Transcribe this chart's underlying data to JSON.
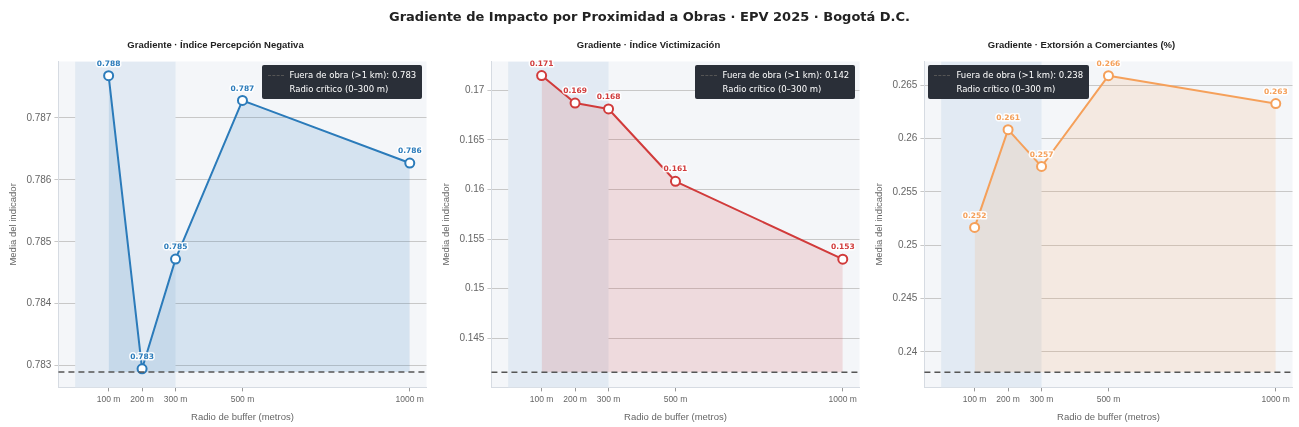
{
  "chart_data": [
    {
      "type": "other",
      "title": "Gradiente de Impacto por Proximidad a Obras · EPV 2025 · Bogotá D.C."
    },
    {
      "type": "area",
      "title": "Gradiente · Índice Percepción Negativa",
      "xlabel": "Radio de buffer (metros)",
      "ylabel": "Media del indicador",
      "x": [
        100,
        200,
        300,
        500,
        1000
      ],
      "series": [
        {
          "color": "#2b7bba",
          "values": [
            0.78768,
            0.78295,
            0.78472,
            0.78728,
            0.78627
          ],
          "value_labels": [
            "0.788",
            "0.783",
            "0.785",
            "0.787",
            "0.786"
          ]
        }
      ],
      "xlim": [
        -50,
        1050
      ],
      "xticks": [
        {
          "value": 100,
          "label": "100 m"
        },
        {
          "value": 200,
          "label": "200 m"
        },
        {
          "value": 300,
          "label": "300 m"
        },
        {
          "value": 500,
          "label": "500 m"
        },
        {
          "value": 1000,
          "label": "1000 m"
        }
      ],
      "ylim": [
        0.78265,
        0.78791
      ],
      "yticks": [
        0.783,
        0.784,
        0.785,
        0.786,
        0.787
      ],
      "ref_lines": [
        {
          "axis": "y",
          "value": 0.7829,
          "label": "Fuera de obra (>1 km): 0.783",
          "color": "#555555",
          "line_style": "dashed"
        }
      ],
      "bands": [
        {
          "axis": "x",
          "from": 0,
          "to": 300,
          "label": "Radio crítico (0–300 m)",
          "color": "#e2eaf3"
        }
      ],
      "grid": "y",
      "legend": "top right",
      "marker": "circle",
      "line_style": "solid"
    },
    {
      "type": "area",
      "title": "Gradiente · Índice Victimización",
      "xlabel": "Radio de buffer (metros)",
      "ylabel": "Media del indicador",
      "x": [
        100,
        200,
        300,
        500,
        1000
      ],
      "series": [
        {
          "color": "#d13b3b",
          "values": [
            0.1715,
            0.16873,
            0.16813,
            0.16083,
            0.15297
          ],
          "value_labels": [
            "0.171",
            "0.169",
            "0.168",
            "0.161",
            "0.153"
          ]
        }
      ],
      "xlim": [
        -50,
        1050
      ],
      "xticks": [
        {
          "value": 100,
          "label": "100 m"
        },
        {
          "value": 200,
          "label": "200 m"
        },
        {
          "value": 300,
          "label": "300 m"
        },
        {
          "value": 500,
          "label": "500 m"
        },
        {
          "value": 1000,
          "label": "1000 m"
        }
      ],
      "ylim": [
        0.14003,
        0.17293
      ],
      "yticks": [
        0.145,
        0.15,
        0.155,
        0.16,
        0.165,
        0.17
      ],
      "ref_lines": [
        {
          "axis": "y",
          "value": 0.14157,
          "label": "Fuera de obra (>1 km): 0.142",
          "color": "#555555",
          "line_style": "dashed"
        }
      ],
      "bands": [
        {
          "axis": "x",
          "from": 0,
          "to": 300,
          "label": "Radio crítico (0–300 m)",
          "color": "#e2eaf3"
        }
      ],
      "grid": "y",
      "legend": "top right",
      "marker": "circle",
      "line_style": "solid"
    },
    {
      "type": "area",
      "title": "Gradiente · Extorsión a Comerciantes (%)",
      "xlabel": "Radio de buffer (metros)",
      "ylabel": "Media del indicador",
      "x": [
        100,
        200,
        300,
        500,
        1000
      ],
      "series": [
        {
          "color": "#f5a05a",
          "values": [
            0.25168,
            0.26084,
            0.25739,
            0.2659,
            0.26329
          ],
          "value_labels": [
            "0.252",
            "0.261",
            "0.257",
            "0.266",
            "0.263"
          ]
        }
      ],
      "xlim": [
        -50,
        1050
      ],
      "xticks": [
        {
          "value": 100,
          "label": "100 m"
        },
        {
          "value": 200,
          "label": "200 m"
        },
        {
          "value": 300,
          "label": "300 m"
        },
        {
          "value": 500,
          "label": "500 m"
        },
        {
          "value": 1000,
          "label": "1000 m"
        }
      ],
      "ylim": [
        0.23668,
        0.26724
      ],
      "yticks": [
        0.24,
        0.245,
        0.25,
        0.255,
        0.26,
        0.265
      ],
      "ref_lines": [
        {
          "axis": "y",
          "value": 0.2381,
          "label": "Fuera de obra (>1 km): 0.238",
          "color": "#555555",
          "line_style": "dashed"
        }
      ],
      "bands": [
        {
          "axis": "x",
          "from": 0,
          "to": 300,
          "label": "Radio crítico (0–300 m)",
          "color": "#e2eaf3"
        }
      ],
      "grid": "y",
      "legend": "top left",
      "marker": "circle",
      "line_style": "solid"
    }
  ]
}
